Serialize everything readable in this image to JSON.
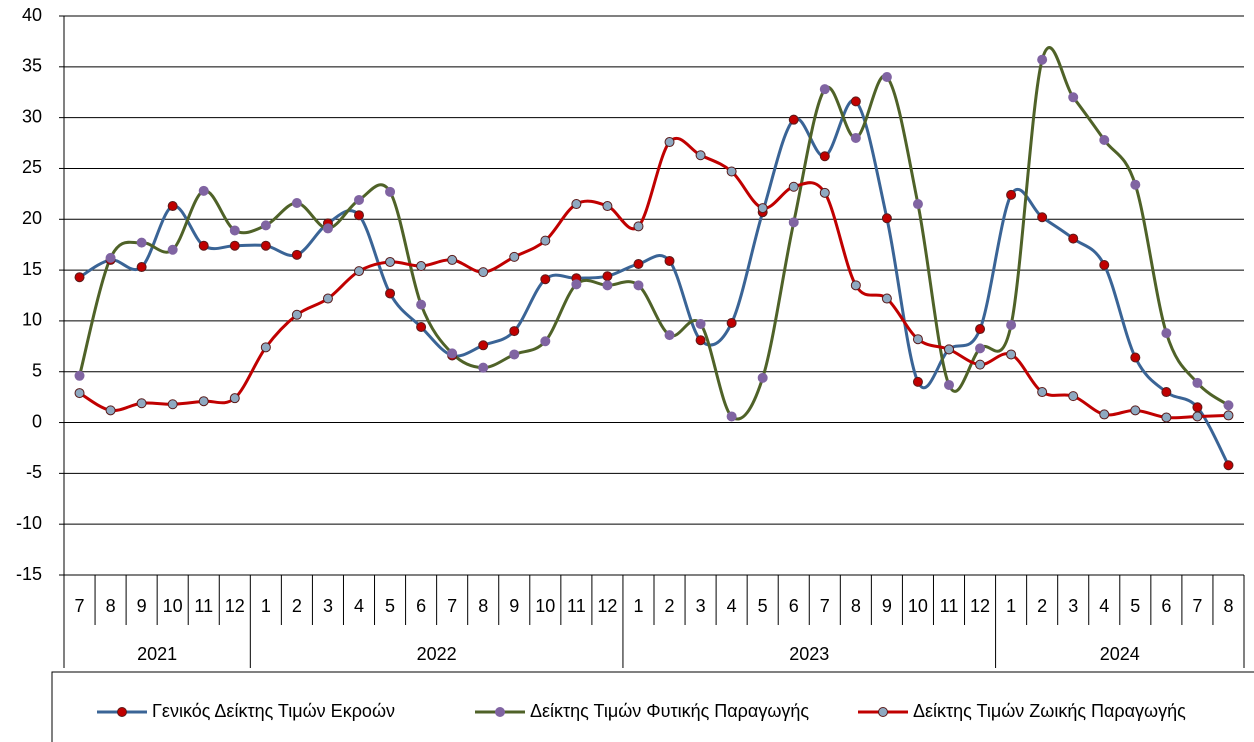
{
  "chart_data": {
    "type": "line",
    "groups": [
      {
        "label": "2021",
        "categories": [
          "7",
          "8",
          "9",
          "10",
          "11",
          "12"
        ]
      },
      {
        "label": "2022",
        "categories": [
          "1",
          "2",
          "3",
          "4",
          "5",
          "6",
          "7",
          "8",
          "9",
          "10",
          "11",
          "12"
        ]
      },
      {
        "label": "2023",
        "categories": [
          "1",
          "2",
          "3",
          "4",
          "5",
          "6",
          "7",
          "8",
          "9",
          "10",
          "11",
          "12"
        ]
      },
      {
        "label": "2024",
        "categories": [
          "1",
          "2",
          "3",
          "4",
          "5",
          "6",
          "7",
          "8"
        ]
      }
    ],
    "series": [
      {
        "name": "Γενικός Δείκτης Τιμών Εκροών",
        "color": "#3A6496",
        "marker_color": "#C00000",
        "values": [
          14.3,
          16.0,
          15.3,
          21.3,
          17.4,
          17.4,
          17.4,
          16.5,
          19.6,
          20.4,
          12.7,
          9.4,
          6.6,
          7.6,
          9.0,
          14.1,
          14.2,
          14.4,
          15.6,
          15.9,
          8.1,
          9.8,
          20.7,
          29.8,
          26.2,
          31.6,
          20.1,
          4.0,
          7.2,
          9.2,
          22.4,
          20.2,
          18.1,
          15.5,
          6.4,
          3.0,
          1.5,
          -4.2
        ]
      },
      {
        "name": "Δείκτης Τιμών Φυτικής Παραγωγής",
        "color": "#4F6228",
        "marker_color": "#8064A2",
        "values": [
          4.6,
          16.2,
          17.7,
          17.0,
          22.8,
          18.9,
          19.4,
          21.6,
          19.1,
          21.9,
          22.7,
          11.6,
          6.8,
          5.4,
          6.7,
          8.0,
          13.6,
          13.5,
          13.5,
          8.6,
          9.7,
          0.6,
          4.4,
          19.7,
          32.8,
          28.0,
          34.0,
          21.5,
          3.7,
          7.3,
          9.6,
          35.7,
          32.0,
          27.8,
          23.4,
          8.8,
          3.9,
          1.7
        ]
      },
      {
        "name": "Δείκτης Τιμών Ζωικής Παραγωγής",
        "color": "#C00000",
        "marker_color": "#8EA9C1",
        "values": [
          2.9,
          1.2,
          1.9,
          1.8,
          2.1,
          2.4,
          7.4,
          10.6,
          12.2,
          14.9,
          15.8,
          15.4,
          16.0,
          14.8,
          16.3,
          17.9,
          21.5,
          21.3,
          19.3,
          27.6,
          26.3,
          24.7,
          21.1,
          23.2,
          22.6,
          13.5,
          12.2,
          8.2,
          7.2,
          5.7,
          6.7,
          3.0,
          2.6,
          0.8,
          1.2,
          0.5,
          0.6,
          0.7
        ]
      }
    ],
    "ylim": [
      -15,
      40
    ],
    "yticks": [
      -15,
      -10,
      -5,
      0,
      5,
      10,
      15,
      20,
      25,
      30,
      35,
      40
    ],
    "grid": true,
    "smooth": true
  }
}
